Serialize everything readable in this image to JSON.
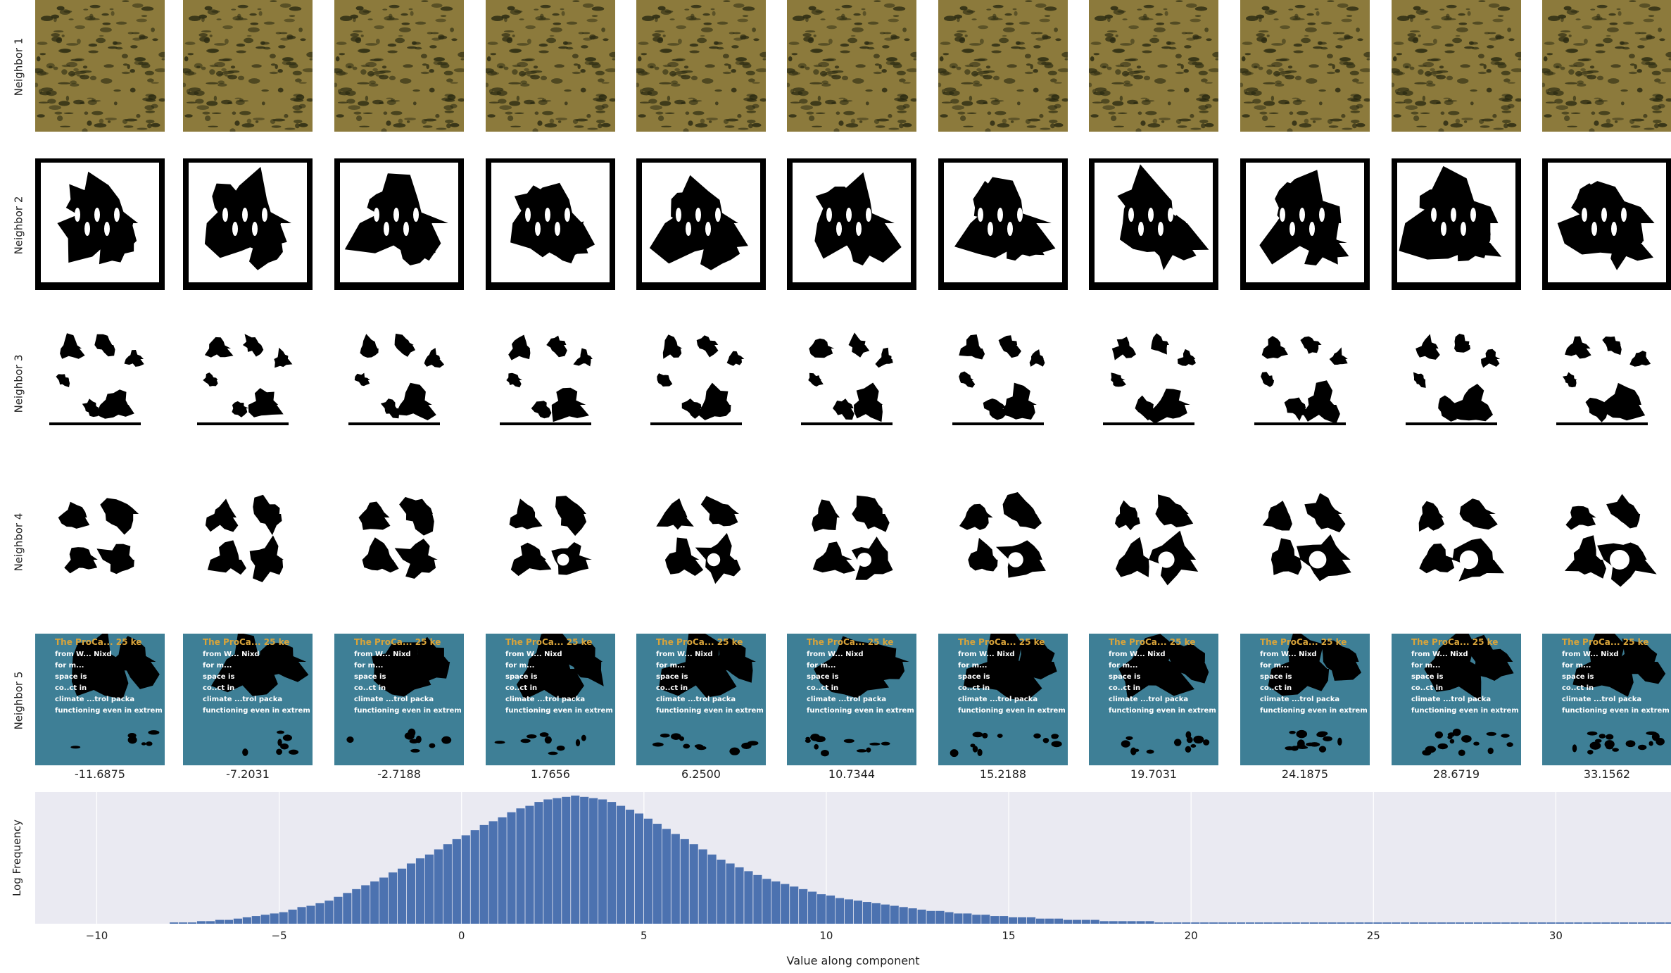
{
  "row_labels": [
    "Neighbor 1",
    "Neighbor 2",
    "Neighbor 3",
    "Neighbor 4",
    "Neighbor 5"
  ],
  "column_values": [
    "-11.6875",
    "-7.2031",
    "-2.7188",
    "1.7656",
    "6.2500",
    "10.7344",
    "15.2188",
    "19.7031",
    "24.1875",
    "28.6719",
    "33.1562"
  ],
  "neighbor5_text": [
    "The ProCa... 25 ke",
    "from W... Nixd",
    "for m...",
    "space is",
    "co..ct in",
    "climate ...trol packa",
    "functioning even in extrem"
  ],
  "colors": {
    "neighbor1_bg": "#8c7a3c",
    "neighbor1_dark": "#2a2a12",
    "neighbor5_bg": "#3e7f96",
    "neighbor5_title": "#d9a43a",
    "hist_bg": "#eaeaf2",
    "bar": "#4c72b0",
    "grid": "#ffffff"
  },
  "chart_data": {
    "type": "bar",
    "title": "",
    "xlabel": "Value along component",
    "ylabel": "Log Frequency",
    "xlim": [
      -11.6875,
      33.1562
    ],
    "xticks": [
      "−10",
      "−5",
      "0",
      "5",
      "10",
      "15",
      "20",
      "25",
      "30"
    ],
    "grid": true,
    "bins": {
      "start": -8.0,
      "width": 0.25,
      "counts": [
        1,
        1,
        1,
        2,
        2,
        3,
        3,
        4,
        5,
        6,
        7,
        8,
        9,
        11,
        13,
        14,
        16,
        18,
        21,
        24,
        27,
        30,
        33,
        36,
        40,
        43,
        47,
        51,
        54,
        58,
        62,
        66,
        69,
        73,
        77,
        80,
        83,
        87,
        90,
        92,
        95,
        97,
        98,
        99,
        100,
        99,
        98,
        97,
        95,
        92,
        89,
        86,
        82,
        78,
        74,
        70,
        66,
        62,
        58,
        54,
        50,
        47,
        44,
        41,
        38,
        35,
        33,
        31,
        29,
        27,
        25,
        23,
        22,
        20,
        19,
        18,
        17,
        16,
        15,
        14,
        13,
        12,
        11,
        10,
        10,
        9,
        8,
        8,
        7,
        7,
        6,
        6,
        5,
        5,
        5,
        4,
        4,
        4,
        3,
        3,
        3,
        3,
        2,
        2,
        2,
        2,
        2,
        2,
        1,
        1,
        1,
        1,
        1,
        1,
        1,
        1,
        1,
        1,
        1,
        1,
        1,
        1,
        1,
        1,
        1,
        1,
        1,
        1,
        1,
        1,
        1,
        1,
        1,
        1,
        1,
        1,
        1,
        1,
        1,
        1,
        1,
        1,
        1,
        1,
        1,
        1,
        1,
        1,
        1,
        1,
        1,
        1,
        1,
        1,
        1,
        1,
        1,
        1,
        1,
        1,
        1,
        1,
        1,
        1,
        1,
        1,
        1,
        1,
        1,
        1,
        1,
        1,
        1,
        1,
        1,
        1,
        1,
        1,
        1,
        1,
        1,
        1
      ]
    }
  }
}
